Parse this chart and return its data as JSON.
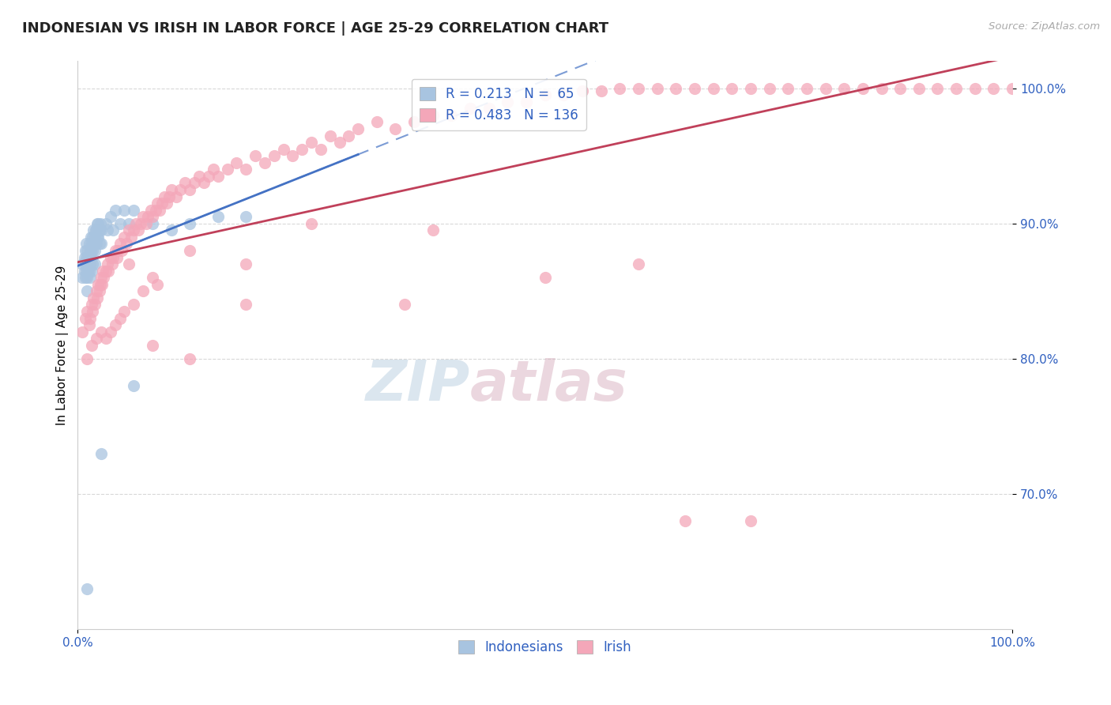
{
  "title": "INDONESIAN VS IRISH IN LABOR FORCE | AGE 25-29 CORRELATION CHART",
  "source_text": "Source: ZipAtlas.com",
  "ylabel": "In Labor Force | Age 25-29",
  "xlim": [
    0.0,
    1.0
  ],
  "ylim": [
    0.6,
    1.02
  ],
  "yticks": [
    0.7,
    0.8,
    0.9,
    1.0
  ],
  "xticks": [
    0.0,
    1.0
  ],
  "indonesian_color": "#a8c4e0",
  "irish_color": "#f4a7b9",
  "indonesian_line_color": "#4472c4",
  "irish_line_color": "#c0405a",
  "background_color": "#ffffff",
  "grid_color": "#d8d8d8",
  "watermark_color": "#c8d8ea",
  "indonesian_R": 0.213,
  "indonesian_N": 65,
  "irish_R": 0.483,
  "irish_N": 136,
  "indo_line_x0": 0.0,
  "indo_line_y0": 0.845,
  "indo_line_x1": 0.3,
  "indo_line_y1": 0.895,
  "irish_line_x0": 0.0,
  "irish_line_y0": 0.745,
  "irish_line_x1": 1.0,
  "irish_line_y1": 1.0,
  "indonesian_x": [
    0.005,
    0.005,
    0.007,
    0.007,
    0.008,
    0.008,
    0.008,
    0.009,
    0.009,
    0.009,
    0.01,
    0.01,
    0.01,
    0.01,
    0.011,
    0.011,
    0.012,
    0.012,
    0.012,
    0.013,
    0.013,
    0.013,
    0.014,
    0.014,
    0.015,
    0.015,
    0.015,
    0.016,
    0.016,
    0.016,
    0.017,
    0.017,
    0.018,
    0.018,
    0.018,
    0.019,
    0.019,
    0.02,
    0.02,
    0.021,
    0.021,
    0.022,
    0.022,
    0.023,
    0.023,
    0.024,
    0.025,
    0.025,
    0.03,
    0.032,
    0.035,
    0.038,
    0.04,
    0.045,
    0.05,
    0.055,
    0.06,
    0.08,
    0.1,
    0.12,
    0.15,
    0.18,
    0.06,
    0.025,
    0.01
  ],
  "indonesian_y": [
    0.87,
    0.86,
    0.875,
    0.865,
    0.88,
    0.87,
    0.86,
    0.885,
    0.875,
    0.865,
    0.88,
    0.87,
    0.86,
    0.85,
    0.875,
    0.865,
    0.885,
    0.875,
    0.865,
    0.88,
    0.87,
    0.86,
    0.89,
    0.88,
    0.885,
    0.875,
    0.865,
    0.89,
    0.88,
    0.87,
    0.895,
    0.885,
    0.89,
    0.88,
    0.87,
    0.895,
    0.885,
    0.895,
    0.885,
    0.9,
    0.89,
    0.9,
    0.89,
    0.895,
    0.885,
    0.9,
    0.895,
    0.885,
    0.9,
    0.895,
    0.905,
    0.895,
    0.91,
    0.9,
    0.91,
    0.9,
    0.91,
    0.9,
    0.895,
    0.9,
    0.905,
    0.905,
    0.78,
    0.73,
    0.63
  ],
  "irish_x": [
    0.005,
    0.008,
    0.01,
    0.012,
    0.013,
    0.015,
    0.016,
    0.017,
    0.018,
    0.02,
    0.021,
    0.022,
    0.023,
    0.024,
    0.025,
    0.026,
    0.027,
    0.028,
    0.03,
    0.032,
    0.033,
    0.035,
    0.037,
    0.038,
    0.04,
    0.042,
    0.043,
    0.045,
    0.047,
    0.05,
    0.052,
    0.055,
    0.057,
    0.06,
    0.062,
    0.065,
    0.067,
    0.07,
    0.073,
    0.075,
    0.078,
    0.08,
    0.083,
    0.085,
    0.088,
    0.09,
    0.093,
    0.095,
    0.098,
    0.1,
    0.105,
    0.11,
    0.115,
    0.12,
    0.125,
    0.13,
    0.135,
    0.14,
    0.145,
    0.15,
    0.16,
    0.17,
    0.18,
    0.19,
    0.2,
    0.21,
    0.22,
    0.23,
    0.24,
    0.25,
    0.26,
    0.27,
    0.28,
    0.29,
    0.3,
    0.32,
    0.34,
    0.36,
    0.38,
    0.4,
    0.42,
    0.44,
    0.46,
    0.48,
    0.5,
    0.52,
    0.54,
    0.56,
    0.58,
    0.6,
    0.62,
    0.64,
    0.66,
    0.68,
    0.7,
    0.72,
    0.74,
    0.76,
    0.78,
    0.8,
    0.82,
    0.84,
    0.86,
    0.88,
    0.9,
    0.92,
    0.94,
    0.96,
    0.98,
    1.0,
    0.055,
    0.08,
    0.12,
    0.18,
    0.25,
    0.38,
    0.08,
    0.12,
    0.18,
    0.35,
    0.5,
    0.6,
    0.65,
    0.72,
    0.01,
    0.015,
    0.02,
    0.025,
    0.03,
    0.035,
    0.04,
    0.045,
    0.05,
    0.06,
    0.07,
    0.085
  ],
  "irish_y": [
    0.82,
    0.83,
    0.835,
    0.825,
    0.83,
    0.84,
    0.835,
    0.845,
    0.84,
    0.85,
    0.845,
    0.855,
    0.85,
    0.855,
    0.86,
    0.855,
    0.865,
    0.86,
    0.865,
    0.87,
    0.865,
    0.875,
    0.87,
    0.875,
    0.88,
    0.875,
    0.88,
    0.885,
    0.88,
    0.89,
    0.885,
    0.895,
    0.89,
    0.895,
    0.9,
    0.895,
    0.9,
    0.905,
    0.9,
    0.905,
    0.91,
    0.905,
    0.91,
    0.915,
    0.91,
    0.915,
    0.92,
    0.915,
    0.92,
    0.925,
    0.92,
    0.925,
    0.93,
    0.925,
    0.93,
    0.935,
    0.93,
    0.935,
    0.94,
    0.935,
    0.94,
    0.945,
    0.94,
    0.95,
    0.945,
    0.95,
    0.955,
    0.95,
    0.955,
    0.96,
    0.955,
    0.965,
    0.96,
    0.965,
    0.97,
    0.975,
    0.97,
    0.975,
    0.98,
    0.98,
    0.985,
    0.985,
    0.99,
    0.99,
    0.995,
    0.995,
    0.998,
    0.998,
    1.0,
    1.0,
    1.0,
    1.0,
    1.0,
    1.0,
    1.0,
    1.0,
    1.0,
    1.0,
    1.0,
    1.0,
    1.0,
    1.0,
    1.0,
    1.0,
    1.0,
    1.0,
    1.0,
    1.0,
    1.0,
    1.0,
    0.87,
    0.86,
    0.88,
    0.87,
    0.9,
    0.895,
    0.81,
    0.8,
    0.84,
    0.84,
    0.86,
    0.87,
    0.68,
    0.68,
    0.8,
    0.81,
    0.815,
    0.82,
    0.815,
    0.82,
    0.825,
    0.83,
    0.835,
    0.84,
    0.85,
    0.855
  ]
}
